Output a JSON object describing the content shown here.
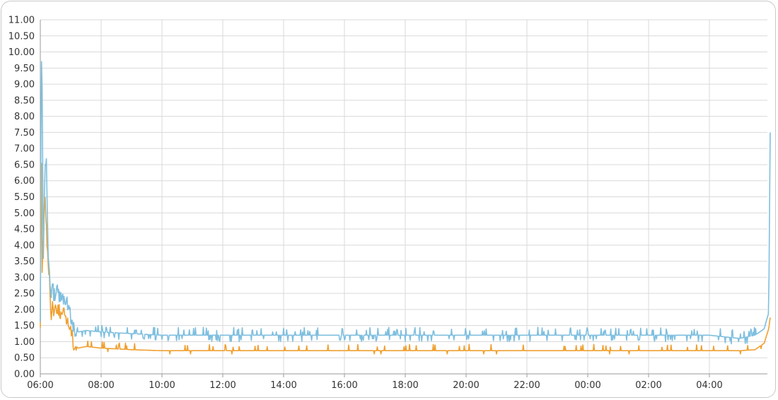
{
  "chart_data": {
    "type": "line",
    "title": "",
    "xlabel": "",
    "ylabel": "",
    "x_ticks": [
      "06:00",
      "08:00",
      "10:00",
      "12:00",
      "14:00",
      "16:00",
      "18:00",
      "20:00",
      "22:00",
      "00:00",
      "02:00",
      "04:00"
    ],
    "y_ticks": [
      "0.00",
      "0.50",
      "1.00",
      "1.50",
      "2.00",
      "2.50",
      "3.00",
      "3.50",
      "4.00",
      "4.50",
      "5.00",
      "5.50",
      "6.00",
      "6.50",
      "7.00",
      "7.50",
      "8.00",
      "8.50",
      "9.00",
      "9.50",
      "10.00",
      "10.50",
      "11.00"
    ],
    "x_range_hours": [
      0,
      24
    ],
    "ylim": [
      0,
      11
    ],
    "grid": true,
    "series": [
      {
        "color": "#7fbfdf",
        "x_hours": [
          0,
          0.03,
          0.06,
          0.1,
          0.15,
          0.2,
          0.25,
          0.3,
          0.35,
          0.4,
          0.45,
          0.5,
          0.6,
          0.7,
          0.8,
          0.9,
          1.0,
          1.1,
          1.25,
          1.5,
          2,
          3,
          4,
          5,
          6,
          7,
          8,
          9,
          10,
          11,
          12,
          13,
          14,
          15,
          16,
          17,
          18,
          19,
          20,
          21,
          22,
          23,
          23.5,
          23.8,
          23.95,
          24
        ],
        "values": [
          1.6,
          10.3,
          9.0,
          3.5,
          6.2,
          6.7,
          3.9,
          3.3,
          2.5,
          2.7,
          2.4,
          2.6,
          2.5,
          2.3,
          2.4,
          2.2,
          1.8,
          1.4,
          1.3,
          1.35,
          1.3,
          1.25,
          1.2,
          1.2,
          1.2,
          1.2,
          1.2,
          1.2,
          1.2,
          1.2,
          1.2,
          1.2,
          1.2,
          1.2,
          1.2,
          1.2,
          1.2,
          1.2,
          1.2,
          1.2,
          1.2,
          1.1,
          1.2,
          1.4,
          1.9,
          7.5
        ]
      },
      {
        "color": "#f0a030",
        "x_hours": [
          0,
          0.03,
          0.06,
          0.1,
          0.15,
          0.2,
          0.25,
          0.3,
          0.35,
          0.4,
          0.45,
          0.5,
          0.6,
          0.7,
          0.8,
          0.9,
          1.0,
          1.1,
          1.25,
          1.5,
          2,
          3,
          4,
          5,
          6,
          7,
          8,
          9,
          10,
          11,
          12,
          13,
          14,
          15,
          16,
          17,
          18,
          19,
          20,
          21,
          22,
          23,
          23.5,
          23.8,
          23.95,
          24
        ],
        "values": [
          1.5,
          8.5,
          3.0,
          4.3,
          5.8,
          4.5,
          3.5,
          2.9,
          1.8,
          2.2,
          1.9,
          2.1,
          2.0,
          1.8,
          1.9,
          1.6,
          1.4,
          0.9,
          0.8,
          0.85,
          0.8,
          0.75,
          0.72,
          0.72,
          0.72,
          0.72,
          0.72,
          0.72,
          0.72,
          0.72,
          0.72,
          0.72,
          0.72,
          0.72,
          0.72,
          0.72,
          0.72,
          0.72,
          0.72,
          0.72,
          0.72,
          0.72,
          0.75,
          0.95,
          1.4,
          1.75
        ]
      }
    ]
  }
}
